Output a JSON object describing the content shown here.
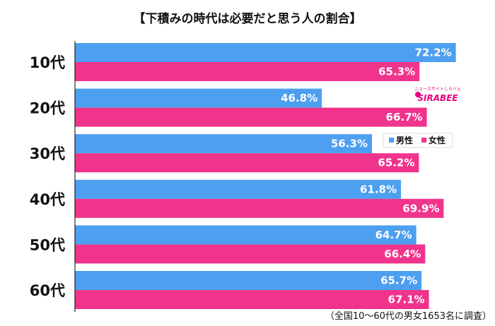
{
  "chart_data": {
    "type": "bar",
    "orientation": "horizontal",
    "title": "【下積みの時代は必要だと思う人の割合】",
    "categories": [
      "10代",
      "20代",
      "30代",
      "40代",
      "50代",
      "60代"
    ],
    "series": [
      {
        "name": "男性",
        "color": "#4d9ff0",
        "values": [
          72.2,
          46.8,
          56.3,
          61.8,
          64.7,
          65.7
        ]
      },
      {
        "name": "女性",
        "color": "#f0348c",
        "values": [
          65.3,
          66.7,
          65.2,
          69.9,
          66.4,
          67.1
        ]
      }
    ],
    "value_suffix": "%",
    "xlim": [
      0,
      100
    ],
    "legend_position": "right",
    "footnote": "（全国10～60代の男女1653名に調査）",
    "logo": {
      "text": "SIRABEE",
      "subtext": "ニュースサイトしらべぇ",
      "color": "#e8007d"
    }
  }
}
